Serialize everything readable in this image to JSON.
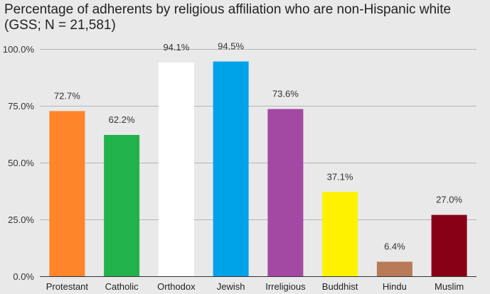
{
  "chart_data": {
    "type": "bar",
    "title": "Percentage of adherents by religious affiliation who are non-Hispanic white (GSS; N = 21,581)",
    "xlabel": "",
    "ylabel": "",
    "categories": [
      "Protestant",
      "Catholic",
      "Orthodox",
      "Jewish",
      "Irreligious",
      "Buddhist",
      "Hindu",
      "Muslim"
    ],
    "values": [
      72.7,
      62.2,
      94.1,
      94.5,
      73.6,
      37.1,
      6.4,
      27.0
    ],
    "data_labels": [
      "72.7%",
      "62.2%",
      "94.1%",
      "94.5%",
      "73.6%",
      "37.1%",
      "6.4%",
      "27.0%"
    ],
    "colors": [
      "#ff842a",
      "#22b24c",
      "#ffffff",
      "#00a2e8",
      "#a349a4",
      "#fff200",
      "#b97a57",
      "#880015"
    ],
    "ylim": [
      0,
      100
    ],
    "yticks": [
      0,
      25,
      50,
      75,
      100
    ],
    "ytick_labels": [
      "0.0%",
      "25.0%",
      "50.0%",
      "75.0%",
      "100.0%"
    ],
    "grid": true,
    "legend": "none",
    "background_color": "#e9e9e9",
    "gridline_color": "#b4b4b4"
  }
}
